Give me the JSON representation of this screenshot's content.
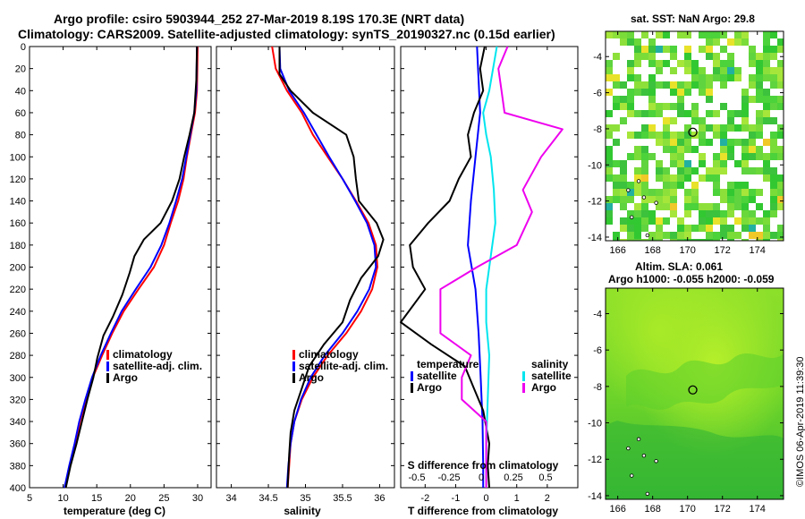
{
  "title_line1": "Argo profile: csiro 5903944_252 27-Mar-2019 8.19S 170.3E (NRT data)",
  "title_line2": "Climatology: CARS2009. Satellite-adjusted climatology: synTS_20190327.nc (0.15d earlier)",
  "sst_title": "sat. SST: NaN Argo: 29.8",
  "sla_title_line1": "Altim. SLA: 0.061",
  "sla_title_line2": "Argo h1000: -0.055 h2000: -0.059",
  "watermark": "©IMOS 06-Apr-2019 11:39:30",
  "colors": {
    "climatology": "#ff0000",
    "satellite": "#0000ff",
    "argo": "#000000",
    "sat_salinity": "#00e5ee",
    "argo_salinity": "#ee00ee"
  },
  "chart_data": [
    {
      "type": "line",
      "name": "temperature-panel",
      "xlabel": "temperature (deg C)",
      "ylabel": "",
      "xlim": [
        5,
        32
      ],
      "ylim": [
        400,
        0
      ],
      "xticks": [
        5,
        10,
        15,
        20,
        25,
        30
      ],
      "yticks": [
        0,
        20,
        40,
        60,
        80,
        100,
        120,
        140,
        160,
        180,
        200,
        220,
        240,
        260,
        280,
        300,
        320,
        340,
        360,
        380,
        400
      ],
      "legend": [
        "climatology",
        "satellite-adj. clim.",
        "Argo"
      ],
      "series": [
        {
          "name": "climatology",
          "color_key": "climatology",
          "points": [
            [
              30.0,
              0
            ],
            [
              29.9,
              40
            ],
            [
              29.6,
              60
            ],
            [
              29.0,
              80
            ],
            [
              28.4,
              100
            ],
            [
              27.9,
              120
            ],
            [
              27.1,
              140
            ],
            [
              26.0,
              160
            ],
            [
              25.0,
              180
            ],
            [
              23.5,
              200
            ],
            [
              21.2,
              220
            ],
            [
              19.0,
              240
            ],
            [
              17.3,
              260
            ],
            [
              15.8,
              280
            ],
            [
              14.4,
              300
            ],
            [
              13.4,
              320
            ],
            [
              12.5,
              340
            ],
            [
              11.8,
              360
            ],
            [
              11.0,
              380
            ],
            [
              10.3,
              400
            ]
          ]
        },
        {
          "name": "satellite-adj. clim.",
          "color_key": "satellite",
          "points": [
            [
              29.9,
              0
            ],
            [
              29.8,
              40
            ],
            [
              29.5,
              60
            ],
            [
              28.9,
              80
            ],
            [
              28.3,
              100
            ],
            [
              27.7,
              120
            ],
            [
              26.8,
              140
            ],
            [
              25.8,
              160
            ],
            [
              24.6,
              180
            ],
            [
              23.0,
              200
            ],
            [
              20.8,
              220
            ],
            [
              18.7,
              240
            ],
            [
              17.1,
              260
            ],
            [
              15.6,
              280
            ],
            [
              14.3,
              300
            ],
            [
              13.3,
              320
            ],
            [
              12.4,
              340
            ],
            [
              11.7,
              360
            ],
            [
              10.9,
              380
            ],
            [
              10.2,
              400
            ]
          ]
        },
        {
          "name": "Argo",
          "color_key": "argo",
          "points": [
            [
              29.9,
              0
            ],
            [
              29.8,
              30
            ],
            [
              29.5,
              60
            ],
            [
              28.8,
              80
            ],
            [
              28.0,
              100
            ],
            [
              27.3,
              120
            ],
            [
              26.2,
              140
            ],
            [
              24.5,
              160
            ],
            [
              22.0,
              175
            ],
            [
              20.6,
              190
            ],
            [
              19.9,
              205
            ],
            [
              18.8,
              225
            ],
            [
              17.4,
              245
            ],
            [
              16.0,
              262
            ],
            [
              15.1,
              282
            ],
            [
              14.5,
              300
            ],
            [
              13.6,
              320
            ],
            [
              12.8,
              340
            ],
            [
              12.0,
              360
            ],
            [
              11.1,
              380
            ],
            [
              10.4,
              400
            ]
          ]
        }
      ]
    },
    {
      "type": "line",
      "name": "salinity-panel",
      "xlabel": "salinity",
      "xlim": [
        33.8,
        36.2
      ],
      "ylim": [
        400,
        0
      ],
      "xticks": [
        34,
        34.5,
        35,
        35.5,
        36
      ],
      "legend": [
        "climatology",
        "satellite-adj. clim.",
        "Argo"
      ],
      "series": [
        {
          "name": "climatology",
          "color_key": "climatology",
          "points": [
            [
              34.55,
              0
            ],
            [
              34.6,
              20
            ],
            [
              34.75,
              40
            ],
            [
              34.95,
              60
            ],
            [
              35.1,
              80
            ],
            [
              35.3,
              100
            ],
            [
              35.5,
              120
            ],
            [
              35.68,
              140
            ],
            [
              35.85,
              160
            ],
            [
              35.95,
              180
            ],
            [
              35.97,
              200
            ],
            [
              35.9,
              220
            ],
            [
              35.75,
              240
            ],
            [
              35.55,
              260
            ],
            [
              35.3,
              280
            ],
            [
              35.1,
              300
            ],
            [
              34.95,
              320
            ],
            [
              34.85,
              340
            ],
            [
              34.8,
              360
            ],
            [
              34.78,
              380
            ],
            [
              34.76,
              400
            ]
          ]
        },
        {
          "name": "satellite-adj. clim.",
          "color_key": "satellite",
          "points": [
            [
              34.65,
              0
            ],
            [
              34.66,
              20
            ],
            [
              34.78,
              40
            ],
            [
              34.98,
              60
            ],
            [
              35.15,
              80
            ],
            [
              35.32,
              100
            ],
            [
              35.5,
              120
            ],
            [
              35.67,
              140
            ],
            [
              35.83,
              160
            ],
            [
              35.93,
              180
            ],
            [
              35.95,
              200
            ],
            [
              35.86,
              220
            ],
            [
              35.7,
              240
            ],
            [
              35.5,
              260
            ],
            [
              35.26,
              280
            ],
            [
              35.07,
              300
            ],
            [
              34.94,
              320
            ],
            [
              34.85,
              340
            ],
            [
              34.8,
              360
            ],
            [
              34.77,
              380
            ],
            [
              34.75,
              400
            ]
          ]
        },
        {
          "name": "Argo",
          "color_key": "argo",
          "points": [
            [
              34.65,
              0
            ],
            [
              34.65,
              25
            ],
            [
              34.8,
              40
            ],
            [
              35.1,
              60
            ],
            [
              35.55,
              80
            ],
            [
              35.65,
              100
            ],
            [
              35.68,
              120
            ],
            [
              35.72,
              140
            ],
            [
              35.96,
              160
            ],
            [
              36.05,
              175
            ],
            [
              35.98,
              190
            ],
            [
              35.75,
              210
            ],
            [
              35.6,
              230
            ],
            [
              35.5,
              250
            ],
            [
              35.25,
              270
            ],
            [
              35.05,
              290
            ],
            [
              34.95,
              310
            ],
            [
              34.85,
              330
            ],
            [
              34.8,
              350
            ],
            [
              34.78,
              370
            ],
            [
              34.76,
              400
            ]
          ]
        }
      ]
    },
    {
      "type": "line",
      "name": "difference-panel",
      "xlabel": "T difference from climatology",
      "xlabel_top": "S difference from climatology",
      "xlim": [
        -2.8,
        3.0
      ],
      "ylim": [
        400,
        0
      ],
      "xticks": [
        -2,
        -1,
        0,
        1,
        2
      ],
      "xticks_top": [
        -0.5,
        -0.25,
        0,
        0.25,
        0.5
      ],
      "legend_left": [
        "temperature",
        "satellite",
        "Argo"
      ],
      "legend_right": [
        "salinity",
        "satellite",
        "Argo"
      ],
      "series": [
        {
          "name": "temperature satellite",
          "color_key": "satellite",
          "points": [
            [
              -0.3,
              0
            ],
            [
              -0.2,
              60
            ],
            [
              -0.35,
              100
            ],
            [
              -0.5,
              140
            ],
            [
              -0.6,
              180
            ],
            [
              -0.35,
              220
            ],
            [
              -0.25,
              260
            ],
            [
              -0.18,
              300
            ],
            [
              -0.12,
              340
            ],
            [
              -0.1,
              380
            ],
            [
              -0.1,
              400
            ]
          ]
        },
        {
          "name": "temperature Argo",
          "color_key": "argo",
          "points": [
            [
              -0.05,
              0
            ],
            [
              -0.2,
              20
            ],
            [
              -0.1,
              40
            ],
            [
              -0.4,
              60
            ],
            [
              -0.6,
              80
            ],
            [
              -0.5,
              100
            ],
            [
              -0.9,
              120
            ],
            [
              -1.2,
              140
            ],
            [
              -1.9,
              160
            ],
            [
              -2.5,
              180
            ],
            [
              -2.4,
              200
            ],
            [
              -2.0,
              220
            ],
            [
              -2.8,
              250
            ],
            [
              -1.8,
              270
            ],
            [
              -0.7,
              290
            ],
            [
              -0.4,
              310
            ],
            [
              -0.1,
              330
            ],
            [
              0.1,
              360
            ],
            [
              0.05,
              380
            ],
            [
              0.1,
              400
            ]
          ]
        },
        {
          "name": "salinity satellite",
          "color_key": "sat_salinity",
          "points": [
            [
              0.35,
              0
            ],
            [
              0.1,
              40
            ],
            [
              -0.1,
              60
            ],
            [
              0.0,
              80
            ],
            [
              0.15,
              100
            ],
            [
              0.25,
              130
            ],
            [
              0.3,
              160
            ],
            [
              0.15,
              190
            ],
            [
              0.0,
              220
            ],
            [
              0.0,
              250
            ],
            [
              0.1,
              280
            ],
            [
              0.05,
              320
            ],
            [
              0.0,
              360
            ],
            [
              0.0,
              400
            ]
          ]
        },
        {
          "name": "salinity Argo",
          "color_key": "argo_salinity",
          "points": [
            [
              0.7,
              0
            ],
            [
              0.4,
              20
            ],
            [
              0.5,
              40
            ],
            [
              0.6,
              60
            ],
            [
              2.5,
              75
            ],
            [
              1.8,
              100
            ],
            [
              1.2,
              130
            ],
            [
              1.5,
              150
            ],
            [
              1.0,
              180
            ],
            [
              -0.3,
              200
            ],
            [
              -1.5,
              220
            ],
            [
              -1.5,
              240
            ],
            [
              -1.5,
              260
            ],
            [
              -0.5,
              280
            ],
            [
              -0.8,
              300
            ],
            [
              -0.8,
              320
            ],
            [
              0.0,
              340
            ],
            [
              0.0,
              380
            ],
            [
              0.0,
              400
            ]
          ]
        }
      ]
    },
    {
      "type": "heatmap",
      "name": "sst-map",
      "title": "sat. SST: NaN Argo: 29.8",
      "xlim": [
        165.3,
        175.5
      ],
      "ylim": [
        -14.2,
        -2.6
      ],
      "xticks": [
        166,
        168,
        170,
        172,
        174
      ],
      "yticks": [
        -4,
        -6,
        -8,
        -10,
        -12,
        -14
      ],
      "argo_position": [
        170.3,
        -8.19
      ]
    },
    {
      "type": "heatmap",
      "name": "sla-map",
      "title": "Altim. SLA: 0.061",
      "xlim": [
        165.3,
        175.5
      ],
      "ylim": [
        -14.2,
        -2.6
      ],
      "xticks": [
        166,
        168,
        170,
        172,
        174
      ],
      "yticks": [
        -4,
        -6,
        -8,
        -10,
        -12,
        -14
      ],
      "argo_position": [
        170.3,
        -8.19
      ]
    }
  ]
}
